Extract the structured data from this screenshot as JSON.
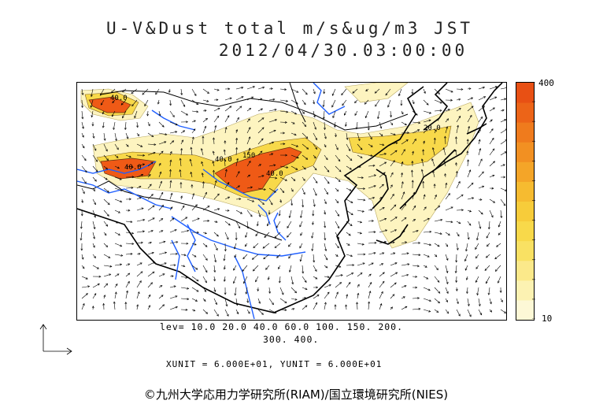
{
  "header": {
    "title_line1": "U-V&Dust total m/s&ug/m3 JST",
    "title_line2": "2012/04/30.03:00:00"
  },
  "colorbar": {
    "max_label": "400",
    "min_label": "10",
    "colors": [
      "#fdf8d6",
      "#fcf2b2",
      "#fbe98a",
      "#f9e163",
      "#f8d94a",
      "#f7cc3a",
      "#f6bb30",
      "#f4a528",
      "#f29022",
      "#ef7b1d",
      "#ec6418",
      "#e85014"
    ]
  },
  "legend": {
    "levels_line1": "lev= 10.0 20.0 40.0 60.0 100. 150. 200.",
    "levels_line2": "300. 400."
  },
  "footer": {
    "units": "XUNIT = 6.000E+01, YUNIT = 6.000E+01",
    "copyright": "©九州大学応用力学研究所(RIAM)/国立環境研究所(NIES)"
  },
  "map": {
    "contour_labels": [
      "40.0",
      "150",
      "40.0",
      "40.0",
      "40.0",
      "20.0"
    ],
    "colors": {
      "low": "#fdf4c0",
      "mid": "#f7d54a",
      "high": "#ef5a16",
      "river": "#1f5fff",
      "coast": "#000000"
    }
  }
}
